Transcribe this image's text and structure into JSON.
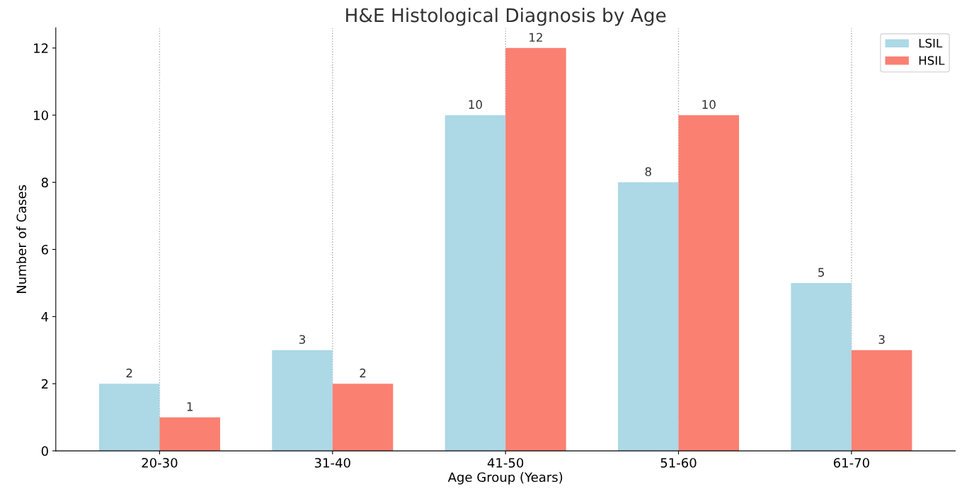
{
  "chart_data": {
    "type": "bar",
    "title": "H&E Histological Diagnosis by Age",
    "xlabel": "Age Group (Years)",
    "ylabel": "Number of Cases",
    "categories": [
      "20-30",
      "31-40",
      "41-50",
      "51-60",
      "61-70"
    ],
    "series": [
      {
        "name": "LSIL",
        "color": "#add8e6",
        "values": [
          2,
          3,
          10,
          8,
          5
        ]
      },
      {
        "name": "HSIL",
        "color": "#fa8072",
        "values": [
          1,
          2,
          12,
          10,
          3
        ]
      }
    ],
    "ylim": [
      0,
      12.6
    ],
    "yticks": [
      0,
      2,
      4,
      6,
      8,
      10,
      12
    ],
    "grid": "x",
    "legend": "top right",
    "data_labels": true
  }
}
